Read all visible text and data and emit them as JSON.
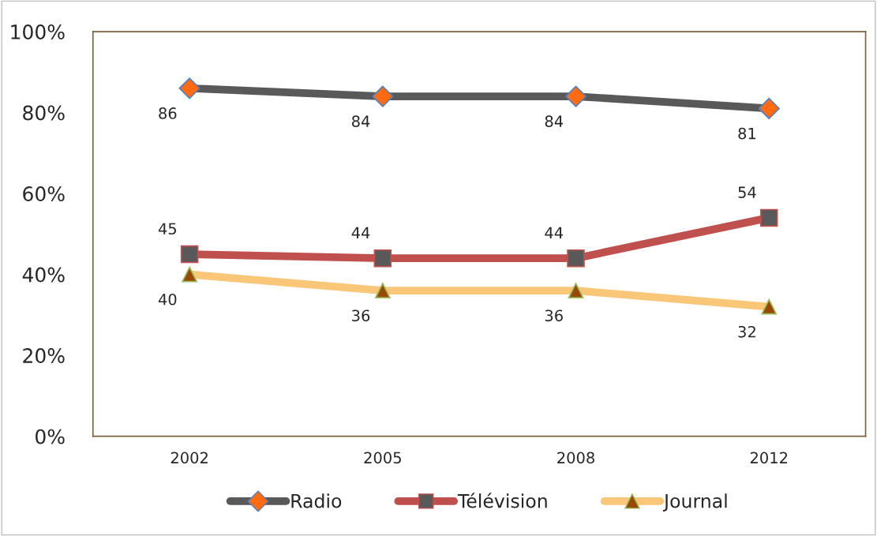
{
  "chart_data": {
    "type": "line",
    "categories": [
      "2002",
      "2005",
      "2008",
      "2012"
    ],
    "series": [
      {
        "name": "Radio",
        "color": "#595959",
        "marker": "diamond",
        "values": [
          86,
          84,
          84,
          81
        ]
      },
      {
        "name": "Télévision",
        "color": "#c0504d",
        "marker": "square",
        "values": [
          45,
          44,
          44,
          54
        ]
      },
      {
        "name": "Journal",
        "color": "#fac779",
        "marker": "triangle",
        "values": [
          40,
          36,
          36,
          32
        ]
      }
    ],
    "ylim": [
      0,
      100
    ],
    "yticks": [
      {
        "value": 0,
        "label": "0%"
      },
      {
        "value": 20,
        "label": "20%"
      },
      {
        "value": 40,
        "label": "40%"
      },
      {
        "value": 60,
        "label": "60%"
      },
      {
        "value": 80,
        "label": "80%"
      },
      {
        "value": 100,
        "label": "100%"
      }
    ],
    "data_labels": true,
    "grid": false,
    "legend": "bottom",
    "line_style": "solid"
  }
}
